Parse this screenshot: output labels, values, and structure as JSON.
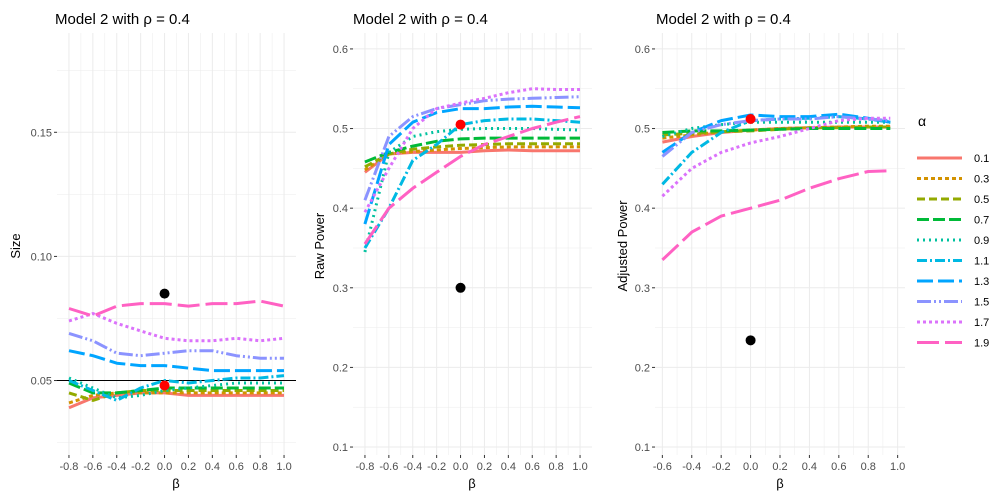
{
  "colors": {
    "alpha_0.1": "#F8766D",
    "alpha_0.3": "#D39200",
    "alpha_0.5": "#93AA00",
    "alpha_0.7": "#00BA38",
    "alpha_0.9": "#00C19F",
    "alpha_1.1": "#00B9E3",
    "alpha_1.3": "#00A5FF",
    "alpha_1.5": "#8B93FF",
    "alpha_1.7": "#DB72FB",
    "alpha_1.9": "#FF61C3",
    "point_red": "#FF0000",
    "point_black": "#000000",
    "panel_background": "#FFFFFF",
    "grid": "#EBEBEB"
  },
  "legend": {
    "title": "α",
    "placement": "right",
    "items": [
      "0.1",
      "0.3",
      "0.5",
      "0.7",
      "0.9",
      "1.1",
      "1.3",
      "1.5",
      "1.7",
      "1.9"
    ]
  },
  "chart_data": [
    {
      "type": "line",
      "title": "Model 2 with ρ = 0.4",
      "xlabel": "β",
      "ylabel": "Size",
      "xlim": [
        -0.9,
        1.1
      ],
      "ylim": [
        0.02,
        0.19
      ],
      "xticks": [
        "-0.8",
        "-0.6",
        "-0.4",
        "-0.2",
        "0.0",
        "0.2",
        "0.4",
        "0.6",
        "0.8",
        "1.0"
      ],
      "yticks": [
        "0.05",
        "0.10",
        "0.15"
      ],
      "grid": true,
      "hline": 0.05,
      "x": [
        -0.8,
        -0.6,
        -0.4,
        -0.2,
        0.0,
        0.2,
        0.4,
        0.6,
        0.8,
        1.0
      ],
      "series": [
        {
          "name": "0.1",
          "values": [
            0.039,
            0.043,
            0.044,
            0.045,
            0.045,
            0.044,
            0.044,
            0.044,
            0.044,
            0.044
          ]
        },
        {
          "name": "0.3",
          "values": [
            0.041,
            0.044,
            0.045,
            0.045,
            0.045,
            0.045,
            0.045,
            0.045,
            0.045,
            0.045
          ]
        },
        {
          "name": "0.5",
          "values": [
            0.045,
            0.042,
            0.045,
            0.046,
            0.046,
            0.046,
            0.046,
            0.046,
            0.046,
            0.046
          ]
        },
        {
          "name": "0.7",
          "values": [
            0.049,
            0.045,
            0.045,
            0.046,
            0.047,
            0.047,
            0.047,
            0.047,
            0.047,
            0.047
          ]
        },
        {
          "name": "0.9",
          "values": [
            0.051,
            0.047,
            0.043,
            0.044,
            0.046,
            0.047,
            0.048,
            0.049,
            0.049,
            0.049
          ]
        },
        {
          "name": "1.1",
          "values": [
            0.05,
            0.046,
            0.042,
            0.047,
            0.05,
            0.049,
            0.05,
            0.051,
            0.051,
            0.052
          ]
        },
        {
          "name": "1.3",
          "values": [
            0.062,
            0.06,
            0.057,
            0.056,
            0.056,
            0.055,
            0.054,
            0.054,
            0.054,
            0.054
          ]
        },
        {
          "name": "1.5",
          "values": [
            0.069,
            0.066,
            0.061,
            0.06,
            0.061,
            0.062,
            0.062,
            0.06,
            0.059,
            0.059
          ]
        },
        {
          "name": "1.7",
          "values": [
            0.074,
            0.077,
            0.073,
            0.07,
            0.067,
            0.066,
            0.066,
            0.067,
            0.066,
            0.067
          ]
        },
        {
          "name": "1.9",
          "values": [
            0.079,
            0.076,
            0.08,
            0.081,
            0.081,
            0.08,
            0.081,
            0.081,
            0.082,
            0.08
          ]
        }
      ],
      "points": [
        {
          "x": 0.0,
          "y": 0.085,
          "color": "black"
        },
        {
          "x": 0.0,
          "y": 0.048,
          "color": "red"
        }
      ]
    },
    {
      "type": "line",
      "title": "Model 2 with ρ = 0.4",
      "xlabel": "β",
      "ylabel": "Raw Power",
      "xlim": [
        -0.9,
        1.1
      ],
      "ylim": [
        0.09,
        0.62
      ],
      "xticks": [
        "-0.8",
        "-0.6",
        "-0.4",
        "-0.2",
        "0.0",
        "0.2",
        "0.4",
        "0.6",
        "0.8",
        "1.0"
      ],
      "yticks": [
        "0.1",
        "0.2",
        "0.3",
        "0.4",
        "0.5",
        "0.6"
      ],
      "grid": true,
      "x": [
        -0.8,
        -0.6,
        -0.4,
        -0.2,
        0.0,
        0.2,
        0.4,
        0.6,
        0.8,
        1.0
      ],
      "series": [
        {
          "name": "0.1",
          "values": [
            0.445,
            0.468,
            0.47,
            0.47,
            0.47,
            0.472,
            0.473,
            0.472,
            0.472,
            0.472
          ]
        },
        {
          "name": "0.3",
          "values": [
            0.448,
            0.468,
            0.471,
            0.473,
            0.475,
            0.476,
            0.477,
            0.477,
            0.477,
            0.477
          ]
        },
        {
          "name": "0.5",
          "values": [
            0.452,
            0.468,
            0.474,
            0.477,
            0.479,
            0.48,
            0.481,
            0.481,
            0.481,
            0.481
          ]
        },
        {
          "name": "0.7",
          "values": [
            0.458,
            0.47,
            0.478,
            0.484,
            0.487,
            0.488,
            0.488,
            0.488,
            0.488,
            0.488
          ]
        },
        {
          "name": "0.9",
          "values": [
            0.345,
            0.47,
            0.49,
            0.496,
            0.499,
            0.5,
            0.5,
            0.5,
            0.499,
            0.498
          ]
        },
        {
          "name": "1.1",
          "values": [
            0.35,
            0.4,
            0.46,
            0.48,
            0.505,
            0.51,
            0.512,
            0.512,
            0.51,
            0.508
          ]
        },
        {
          "name": "1.3",
          "values": [
            0.38,
            0.48,
            0.508,
            0.52,
            0.525,
            0.525,
            0.527,
            0.528,
            0.527,
            0.526
          ]
        },
        {
          "name": "1.5",
          "values": [
            0.41,
            0.49,
            0.515,
            0.525,
            0.53,
            0.535,
            0.537,
            0.538,
            0.539,
            0.54
          ]
        },
        {
          "name": "1.7",
          "values": [
            0.395,
            0.45,
            0.5,
            0.525,
            0.532,
            0.538,
            0.545,
            0.55,
            0.549,
            0.549
          ]
        },
        {
          "name": "1.9",
          "values": [
            0.355,
            0.4,
            0.425,
            0.445,
            0.465,
            0.48,
            0.49,
            0.5,
            0.508,
            0.515
          ]
        }
      ],
      "points": [
        {
          "x": 0.0,
          "y": 0.3,
          "color": "black"
        },
        {
          "x": 0.0,
          "y": 0.505,
          "color": "red"
        }
      ]
    },
    {
      "type": "line",
      "title": "Model 2 with ρ = 0.4",
      "xlabel": "β",
      "ylabel": "Adjusted Power",
      "xlim": [
        -0.65,
        1.05
      ],
      "ylim": [
        0.09,
        0.62
      ],
      "xticks": [
        "-0.6",
        "-0.4",
        "-0.2",
        "0.0",
        "0.2",
        "0.4",
        "0.6",
        "0.8",
        "1.0"
      ],
      "yticks": [
        "0.1",
        "0.2",
        "0.3",
        "0.4",
        "0.5",
        "0.6"
      ],
      "grid": true,
      "x": [
        -0.6,
        -0.4,
        -0.2,
        0.0,
        0.2,
        0.4,
        0.6,
        0.8,
        0.95
      ],
      "series": [
        {
          "name": "0.1",
          "values": [
            0.483,
            0.49,
            0.495,
            0.498,
            0.5,
            0.501,
            0.502,
            0.502,
            0.502
          ]
        },
        {
          "name": "0.3",
          "values": [
            0.488,
            0.492,
            0.496,
            0.498,
            0.5,
            0.501,
            0.502,
            0.503,
            0.503
          ]
        },
        {
          "name": "0.5",
          "values": [
            0.492,
            0.494,
            0.496,
            0.497,
            0.499,
            0.501,
            0.501,
            0.502,
            0.502
          ]
        },
        {
          "name": "0.7",
          "values": [
            0.495,
            0.497,
            0.497,
            0.498,
            0.499,
            0.5,
            0.5,
            0.5,
            0.5
          ]
        },
        {
          "name": "0.9",
          "values": [
            0.49,
            0.5,
            0.505,
            0.508,
            0.508,
            0.508,
            0.508,
            0.508,
            0.508
          ]
        },
        {
          "name": "1.1",
          "values": [
            0.43,
            0.47,
            0.495,
            0.51,
            0.512,
            0.513,
            0.515,
            0.512,
            0.508
          ]
        },
        {
          "name": "1.3",
          "values": [
            0.47,
            0.495,
            0.51,
            0.517,
            0.515,
            0.515,
            0.518,
            0.513,
            0.508
          ]
        },
        {
          "name": "1.5",
          "values": [
            0.465,
            0.495,
            0.505,
            0.51,
            0.512,
            0.512,
            0.515,
            0.512,
            0.51
          ]
        },
        {
          "name": "1.7",
          "values": [
            0.415,
            0.45,
            0.47,
            0.482,
            0.49,
            0.5,
            0.51,
            0.513,
            0.513
          ]
        },
        {
          "name": "1.9",
          "values": [
            0.335,
            0.37,
            0.39,
            0.4,
            0.41,
            0.425,
            0.437,
            0.446,
            0.447
          ]
        }
      ],
      "points": [
        {
          "x": 0.0,
          "y": 0.234,
          "color": "black"
        },
        {
          "x": 0.0,
          "y": 0.512,
          "color": "red"
        }
      ]
    }
  ]
}
